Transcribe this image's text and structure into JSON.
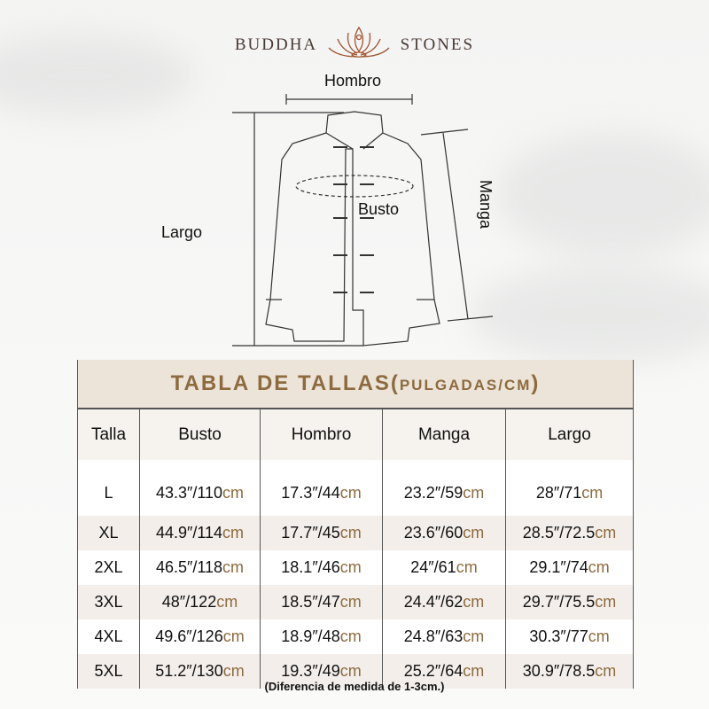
{
  "brand": {
    "left": "BUDDHA",
    "right": "STONES",
    "logo_icon": "lotus-meditation-icon",
    "color": "#a0522d"
  },
  "diagram": {
    "shoulder": "Hombro",
    "chest": "Busto",
    "sleeve": "Manga",
    "length": "Largo"
  },
  "table": {
    "title": "TABLA DE TALLAS(",
    "title_units": "PULGADAS/CM",
    ")": ")",
    "title_close": ")",
    "headers": [
      "Talla",
      "Busto",
      "Hombro",
      "Manga",
      "Largo"
    ],
    "unit": "cm",
    "accent": "#8d6b3e",
    "rows": [
      {
        "size": "L",
        "cells": [
          "43.3″/110",
          "17.3″/44",
          "23.2″/59",
          "28″/71"
        ]
      },
      {
        "size": "XL",
        "cells": [
          "44.9″/114",
          "17.7″/45",
          "23.6″/60",
          "28.5″/72.5"
        ]
      },
      {
        "size": "2XL",
        "cells": [
          "46.5″/118",
          "18.1″/46",
          "24″/61",
          "29.1″/74"
        ]
      },
      {
        "size": "3XL",
        "cells": [
          "48″/122",
          "18.5″/47",
          "24.4″/62",
          "29.7″/75.5"
        ]
      },
      {
        "size": "4XL",
        "cells": [
          "49.6″/126",
          "18.9″/48",
          "24.8″/63",
          "30.3″/77"
        ]
      },
      {
        "size": "5XL",
        "cells": [
          "51.2″/130",
          "19.3″/49",
          "25.2″/64",
          "30.9″/78.5"
        ]
      }
    ]
  },
  "note": "(Diferencia de medida de 1-3cm.)"
}
